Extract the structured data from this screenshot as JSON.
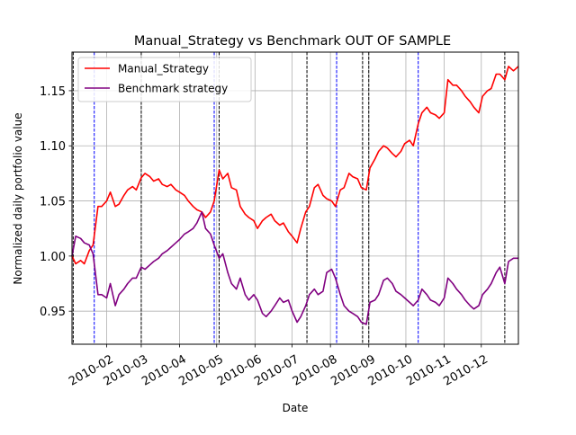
{
  "chart_data": {
    "type": "line",
    "title": "Manual_Strategy vs Benchmark OUT OF SAMPLE",
    "xlabel": "Date",
    "ylabel": "Normalized daily portfolio value",
    "xlim": [
      "2010-01-04",
      "2010-12-31"
    ],
    "ylim": [
      0.92,
      1.185
    ],
    "yticks": [
      0.95,
      1.0,
      1.05,
      1.1,
      1.15
    ],
    "ytick_labels": [
      "0.95",
      "1.00",
      "1.05",
      "1.10",
      "1.15"
    ],
    "xticks": [
      "2010-02-01",
      "2010-03-01",
      "2010-04-01",
      "2010-05-01",
      "2010-06-01",
      "2010-07-01",
      "2010-08-01",
      "2010-09-01",
      "2010-10-01",
      "2010-11-01",
      "2010-12-01"
    ],
    "xtick_labels": [
      "2010-02",
      "2010-03",
      "2010-04",
      "2010-05",
      "2010-06",
      "2010-07",
      "2010-08",
      "2010-09",
      "2010-10",
      "2010-11",
      "2010-12"
    ],
    "grid": true,
    "legend_position": "top-left",
    "series": [
      {
        "name": "Manual_Strategy",
        "color": "#ff0000",
        "points": [
          [
            "2010-01-04",
            1.0
          ],
          [
            "2010-01-07",
            0.993
          ],
          [
            "2010-01-11",
            0.996
          ],
          [
            "2010-01-14",
            0.993
          ],
          [
            "2010-01-18",
            1.005
          ],
          [
            "2010-01-21",
            1.01
          ],
          [
            "2010-01-25",
            1.045
          ],
          [
            "2010-01-28",
            1.045
          ],
          [
            "2010-02-01",
            1.05
          ],
          [
            "2010-02-04",
            1.058
          ],
          [
            "2010-02-08",
            1.045
          ],
          [
            "2010-02-11",
            1.047
          ],
          [
            "2010-02-15",
            1.055
          ],
          [
            "2010-02-18",
            1.06
          ],
          [
            "2010-02-22",
            1.063
          ],
          [
            "2010-02-25",
            1.06
          ],
          [
            "2010-03-01",
            1.071
          ],
          [
            "2010-03-04",
            1.075
          ],
          [
            "2010-03-08",
            1.072
          ],
          [
            "2010-03-11",
            1.068
          ],
          [
            "2010-03-15",
            1.07
          ],
          [
            "2010-03-18",
            1.065
          ],
          [
            "2010-03-22",
            1.063
          ],
          [
            "2010-03-25",
            1.065
          ],
          [
            "2010-03-29",
            1.06
          ],
          [
            "2010-04-01",
            1.058
          ],
          [
            "2010-04-05",
            1.055
          ],
          [
            "2010-04-08",
            1.05
          ],
          [
            "2010-04-12",
            1.045
          ],
          [
            "2010-04-15",
            1.042
          ],
          [
            "2010-04-19",
            1.04
          ],
          [
            "2010-04-22",
            1.035
          ],
          [
            "2010-04-26",
            1.04
          ],
          [
            "2010-04-29",
            1.05
          ],
          [
            "2010-05-03",
            1.078
          ],
          [
            "2010-05-06",
            1.07
          ],
          [
            "2010-05-10",
            1.075
          ],
          [
            "2010-05-13",
            1.062
          ],
          [
            "2010-05-17",
            1.06
          ],
          [
            "2010-05-20",
            1.045
          ],
          [
            "2010-05-24",
            1.038
          ],
          [
            "2010-05-27",
            1.035
          ],
          [
            "2010-05-31",
            1.032
          ],
          [
            "2010-06-03",
            1.025
          ],
          [
            "2010-06-07",
            1.032
          ],
          [
            "2010-06-10",
            1.035
          ],
          [
            "2010-06-14",
            1.038
          ],
          [
            "2010-06-17",
            1.032
          ],
          [
            "2010-06-21",
            1.028
          ],
          [
            "2010-06-24",
            1.03
          ],
          [
            "2010-06-28",
            1.022
          ],
          [
            "2010-07-01",
            1.018
          ],
          [
            "2010-07-05",
            1.012
          ],
          [
            "2010-07-08",
            1.025
          ],
          [
            "2010-07-12",
            1.04
          ],
          [
            "2010-07-15",
            1.045
          ],
          [
            "2010-07-19",
            1.062
          ],
          [
            "2010-07-22",
            1.065
          ],
          [
            "2010-07-26",
            1.055
          ],
          [
            "2010-07-29",
            1.052
          ],
          [
            "2010-08-02",
            1.05
          ],
          [
            "2010-08-05",
            1.045
          ],
          [
            "2010-08-09",
            1.06
          ],
          [
            "2010-08-12",
            1.062
          ],
          [
            "2010-08-16",
            1.075
          ],
          [
            "2010-08-19",
            1.072
          ],
          [
            "2010-08-23",
            1.07
          ],
          [
            "2010-08-26",
            1.062
          ],
          [
            "2010-08-30",
            1.06
          ],
          [
            "2010-09-02",
            1.08
          ],
          [
            "2010-09-06",
            1.088
          ],
          [
            "2010-09-09",
            1.095
          ],
          [
            "2010-09-13",
            1.1
          ],
          [
            "2010-09-16",
            1.098
          ],
          [
            "2010-09-20",
            1.093
          ],
          [
            "2010-09-23",
            1.09
          ],
          [
            "2010-09-27",
            1.095
          ],
          [
            "2010-09-30",
            1.102
          ],
          [
            "2010-10-04",
            1.105
          ],
          [
            "2010-10-07",
            1.1
          ],
          [
            "2010-10-11",
            1.12
          ],
          [
            "2010-10-14",
            1.13
          ],
          [
            "2010-10-18",
            1.135
          ],
          [
            "2010-10-21",
            1.13
          ],
          [
            "2010-10-25",
            1.128
          ],
          [
            "2010-10-28",
            1.125
          ],
          [
            "2010-11-01",
            1.13
          ],
          [
            "2010-11-04",
            1.16
          ],
          [
            "2010-11-08",
            1.155
          ],
          [
            "2010-11-11",
            1.155
          ],
          [
            "2010-11-15",
            1.15
          ],
          [
            "2010-11-18",
            1.145
          ],
          [
            "2010-11-22",
            1.14
          ],
          [
            "2010-11-25",
            1.135
          ],
          [
            "2010-11-29",
            1.13
          ],
          [
            "2010-12-02",
            1.145
          ],
          [
            "2010-12-06",
            1.15
          ],
          [
            "2010-12-09",
            1.152
          ],
          [
            "2010-12-13",
            1.165
          ],
          [
            "2010-12-16",
            1.165
          ],
          [
            "2010-12-20",
            1.16
          ],
          [
            "2010-12-23",
            1.172
          ],
          [
            "2010-12-27",
            1.168
          ],
          [
            "2010-12-31",
            1.172
          ]
        ]
      },
      {
        "name": "Benchmark strategy",
        "color": "#800080",
        "points": [
          [
            "2010-01-04",
            1.0
          ],
          [
            "2010-01-07",
            1.018
          ],
          [
            "2010-01-11",
            1.016
          ],
          [
            "2010-01-14",
            1.012
          ],
          [
            "2010-01-18",
            1.01
          ],
          [
            "2010-01-21",
            1.002
          ],
          [
            "2010-01-25",
            0.965
          ],
          [
            "2010-01-28",
            0.965
          ],
          [
            "2010-02-01",
            0.962
          ],
          [
            "2010-02-04",
            0.975
          ],
          [
            "2010-02-08",
            0.955
          ],
          [
            "2010-02-11",
            0.965
          ],
          [
            "2010-02-15",
            0.97
          ],
          [
            "2010-02-18",
            0.975
          ],
          [
            "2010-02-22",
            0.98
          ],
          [
            "2010-02-25",
            0.98
          ],
          [
            "2010-03-01",
            0.99
          ],
          [
            "2010-03-04",
            0.988
          ],
          [
            "2010-03-08",
            0.992
          ],
          [
            "2010-03-11",
            0.995
          ],
          [
            "2010-03-15",
            0.998
          ],
          [
            "2010-03-18",
            1.002
          ],
          [
            "2010-03-22",
            1.005
          ],
          [
            "2010-03-25",
            1.008
          ],
          [
            "2010-03-29",
            1.012
          ],
          [
            "2010-04-01",
            1.015
          ],
          [
            "2010-04-05",
            1.02
          ],
          [
            "2010-04-08",
            1.022
          ],
          [
            "2010-04-12",
            1.025
          ],
          [
            "2010-04-15",
            1.03
          ],
          [
            "2010-04-19",
            1.04
          ],
          [
            "2010-04-22",
            1.025
          ],
          [
            "2010-04-26",
            1.02
          ],
          [
            "2010-04-29",
            1.01
          ],
          [
            "2010-05-03",
            0.998
          ],
          [
            "2010-05-06",
            1.002
          ],
          [
            "2010-05-10",
            0.985
          ],
          [
            "2010-05-13",
            0.975
          ],
          [
            "2010-05-17",
            0.97
          ],
          [
            "2010-05-20",
            0.98
          ],
          [
            "2010-05-24",
            0.965
          ],
          [
            "2010-05-27",
            0.96
          ],
          [
            "2010-05-31",
            0.965
          ],
          [
            "2010-06-03",
            0.96
          ],
          [
            "2010-06-07",
            0.948
          ],
          [
            "2010-06-10",
            0.945
          ],
          [
            "2010-06-14",
            0.95
          ],
          [
            "2010-06-17",
            0.955
          ],
          [
            "2010-06-21",
            0.962
          ],
          [
            "2010-06-24",
            0.958
          ],
          [
            "2010-06-28",
            0.96
          ],
          [
            "2010-07-01",
            0.95
          ],
          [
            "2010-07-05",
            0.94
          ],
          [
            "2010-07-08",
            0.945
          ],
          [
            "2010-07-12",
            0.955
          ],
          [
            "2010-07-15",
            0.965
          ],
          [
            "2010-07-19",
            0.97
          ],
          [
            "2010-07-22",
            0.965
          ],
          [
            "2010-07-26",
            0.968
          ],
          [
            "2010-07-29",
            0.985
          ],
          [
            "2010-08-02",
            0.988
          ],
          [
            "2010-08-05",
            0.98
          ],
          [
            "2010-08-09",
            0.965
          ],
          [
            "2010-08-12",
            0.955
          ],
          [
            "2010-08-16",
            0.95
          ],
          [
            "2010-08-19",
            0.948
          ],
          [
            "2010-08-23",
            0.945
          ],
          [
            "2010-08-26",
            0.94
          ],
          [
            "2010-08-30",
            0.938
          ],
          [
            "2010-09-02",
            0.958
          ],
          [
            "2010-09-06",
            0.96
          ],
          [
            "2010-09-09",
            0.965
          ],
          [
            "2010-09-13",
            0.978
          ],
          [
            "2010-09-16",
            0.98
          ],
          [
            "2010-09-20",
            0.975
          ],
          [
            "2010-09-23",
            0.968
          ],
          [
            "2010-09-27",
            0.965
          ],
          [
            "2010-09-30",
            0.962
          ],
          [
            "2010-10-04",
            0.958
          ],
          [
            "2010-10-07",
            0.955
          ],
          [
            "2010-10-11",
            0.96
          ],
          [
            "2010-10-14",
            0.97
          ],
          [
            "2010-10-18",
            0.965
          ],
          [
            "2010-10-21",
            0.96
          ],
          [
            "2010-10-25",
            0.958
          ],
          [
            "2010-10-28",
            0.955
          ],
          [
            "2010-11-01",
            0.962
          ],
          [
            "2010-11-04",
            0.98
          ],
          [
            "2010-11-08",
            0.975
          ],
          [
            "2010-11-11",
            0.97
          ],
          [
            "2010-11-15",
            0.965
          ],
          [
            "2010-11-18",
            0.96
          ],
          [
            "2010-11-22",
            0.955
          ],
          [
            "2010-11-25",
            0.952
          ],
          [
            "2010-11-29",
            0.955
          ],
          [
            "2010-12-02",
            0.965
          ],
          [
            "2010-12-06",
            0.97
          ],
          [
            "2010-12-09",
            0.975
          ],
          [
            "2010-12-13",
            0.985
          ],
          [
            "2010-12-16",
            0.99
          ],
          [
            "2010-12-20",
            0.975
          ],
          [
            "2010-12-23",
            0.995
          ],
          [
            "2010-12-27",
            0.998
          ],
          [
            "2010-12-31",
            0.998
          ]
        ]
      }
    ],
    "vertical_lines": [
      {
        "date": "2010-01-05",
        "color": "#000000",
        "style": "dashed"
      },
      {
        "date": "2010-01-22",
        "color": "#0000ff",
        "style": "dashed"
      },
      {
        "date": "2010-03-01",
        "color": "#000000",
        "style": "dashed"
      },
      {
        "date": "2010-04-29",
        "color": "#0000ff",
        "style": "dashed"
      },
      {
        "date": "2010-05-03",
        "color": "#000000",
        "style": "dashed"
      },
      {
        "date": "2010-07-13",
        "color": "#000000",
        "style": "dashed"
      },
      {
        "date": "2010-08-06",
        "color": "#0000ff",
        "style": "dashed"
      },
      {
        "date": "2010-08-27",
        "color": "#000000",
        "style": "dashed"
      },
      {
        "date": "2010-09-01",
        "color": "#000000",
        "style": "dashed"
      },
      {
        "date": "2010-10-11",
        "color": "#0000ff",
        "style": "dashed"
      },
      {
        "date": "2010-12-20",
        "color": "#000000",
        "style": "dashed"
      }
    ]
  }
}
